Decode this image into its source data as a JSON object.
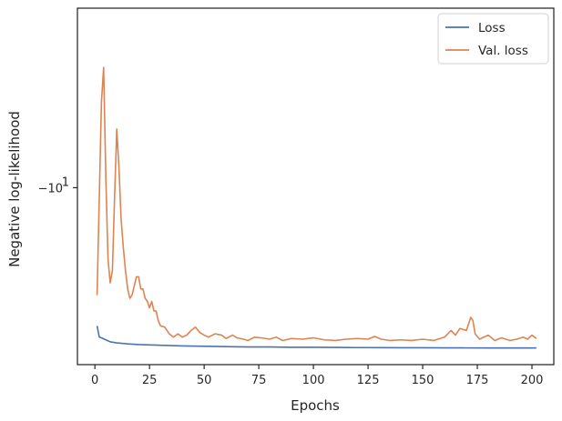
{
  "chart_data": {
    "type": "line",
    "xlabel": "Epochs",
    "ylabel": "Negative log-likelihood",
    "xlim": [
      -8,
      210
    ],
    "ylim": [
      -7.05,
      -14.1
    ],
    "yscale": "symlog",
    "x_ticks": [
      0,
      25,
      50,
      75,
      100,
      125,
      150,
      175,
      200
    ],
    "y_ticks": [
      {
        "value": -10,
        "base": "−10",
        "exp": "1"
      }
    ],
    "grid": false,
    "legend_position": "top-right",
    "series": [
      {
        "name": "Loss",
        "color": "#4c72b0",
        "points": [
          [
            1,
            -7.62
          ],
          [
            2,
            -7.45
          ],
          [
            3,
            -7.44
          ],
          [
            5,
            -7.41
          ],
          [
            7,
            -7.38
          ],
          [
            10,
            -7.365
          ],
          [
            15,
            -7.35
          ],
          [
            20,
            -7.34
          ],
          [
            25,
            -7.335
          ],
          [
            30,
            -7.33
          ],
          [
            40,
            -7.32
          ],
          [
            50,
            -7.315
          ],
          [
            60,
            -7.31
          ],
          [
            70,
            -7.305
          ],
          [
            80,
            -7.305
          ],
          [
            90,
            -7.3
          ],
          [
            100,
            -7.3
          ],
          [
            110,
            -7.298
          ],
          [
            120,
            -7.296
          ],
          [
            130,
            -7.295
          ],
          [
            140,
            -7.294
          ],
          [
            150,
            -7.293
          ],
          [
            160,
            -7.292
          ],
          [
            170,
            -7.291
          ],
          [
            180,
            -7.29
          ],
          [
            190,
            -7.29
          ],
          [
            202,
            -7.29
          ]
        ]
      },
      {
        "name": "Val. loss",
        "color": "#dd8452",
        "points": [
          [
            1,
            -8.1
          ],
          [
            2,
            -9.8
          ],
          [
            3,
            -11.8
          ],
          [
            4,
            -12.6
          ],
          [
            5,
            -10.2
          ],
          [
            6,
            -8.7
          ],
          [
            7,
            -8.3
          ],
          [
            8,
            -8.5
          ],
          [
            9,
            -9.8
          ],
          [
            10,
            -11.2
          ],
          [
            11,
            -10.4
          ],
          [
            12,
            -9.4
          ],
          [
            13,
            -8.9
          ],
          [
            14,
            -8.5
          ],
          [
            15,
            -8.2
          ],
          [
            16,
            -8.05
          ],
          [
            17,
            -8.1
          ],
          [
            18,
            -8.25
          ],
          [
            19,
            -8.4
          ],
          [
            20,
            -8.4
          ],
          [
            21,
            -8.2
          ],
          [
            22,
            -8.2
          ],
          [
            23,
            -8.05
          ],
          [
            24,
            -8.0
          ],
          [
            25,
            -7.9
          ],
          [
            26,
            -8.0
          ],
          [
            27,
            -7.85
          ],
          [
            28,
            -7.85
          ],
          [
            29,
            -7.7
          ],
          [
            30,
            -7.62
          ],
          [
            32,
            -7.6
          ],
          [
            34,
            -7.5
          ],
          [
            36,
            -7.45
          ],
          [
            38,
            -7.5
          ],
          [
            40,
            -7.45
          ],
          [
            42,
            -7.48
          ],
          [
            44,
            -7.55
          ],
          [
            46,
            -7.6
          ],
          [
            48,
            -7.52
          ],
          [
            50,
            -7.48
          ],
          [
            52,
            -7.45
          ],
          [
            55,
            -7.5
          ],
          [
            58,
            -7.48
          ],
          [
            60,
            -7.43
          ],
          [
            63,
            -7.48
          ],
          [
            65,
            -7.44
          ],
          [
            68,
            -7.42
          ],
          [
            70,
            -7.4
          ],
          [
            73,
            -7.45
          ],
          [
            76,
            -7.44
          ],
          [
            80,
            -7.42
          ],
          [
            83,
            -7.45
          ],
          [
            86,
            -7.4
          ],
          [
            90,
            -7.43
          ],
          [
            95,
            -7.42
          ],
          [
            100,
            -7.44
          ],
          [
            105,
            -7.41
          ],
          [
            110,
            -7.4
          ],
          [
            115,
            -7.42
          ],
          [
            120,
            -7.43
          ],
          [
            125,
            -7.42
          ],
          [
            128,
            -7.46
          ],
          [
            131,
            -7.42
          ],
          [
            135,
            -7.4
          ],
          [
            140,
            -7.41
          ],
          [
            145,
            -7.4
          ],
          [
            150,
            -7.42
          ],
          [
            155,
            -7.4
          ],
          [
            160,
            -7.45
          ],
          [
            163,
            -7.55
          ],
          [
            165,
            -7.48
          ],
          [
            167,
            -7.58
          ],
          [
            170,
            -7.55
          ],
          [
            172,
            -7.75
          ],
          [
            173,
            -7.7
          ],
          [
            174,
            -7.5
          ],
          [
            176,
            -7.42
          ],
          [
            178,
            -7.45
          ],
          [
            180,
            -7.48
          ],
          [
            183,
            -7.4
          ],
          [
            186,
            -7.44
          ],
          [
            190,
            -7.4
          ],
          [
            193,
            -7.42
          ],
          [
            196,
            -7.45
          ],
          [
            198,
            -7.42
          ],
          [
            200,
            -7.48
          ],
          [
            202,
            -7.43
          ]
        ]
      }
    ]
  }
}
